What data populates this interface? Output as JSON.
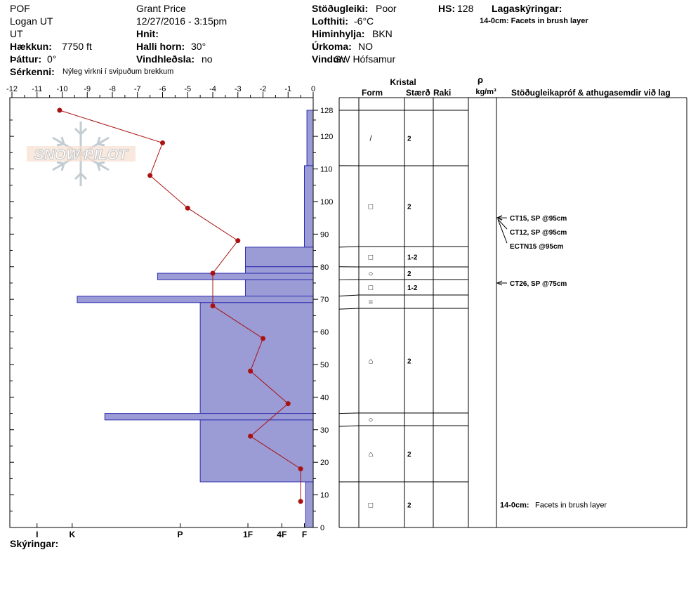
{
  "header": {
    "col1": [
      {
        "label": "",
        "value": "POF"
      },
      {
        "label": "",
        "value": "Logan UT"
      },
      {
        "label": "",
        "value": "UT"
      },
      {
        "label": "Hækkun:",
        "value": "7750 ft"
      },
      {
        "label": "Þáttur:",
        "value": "0°"
      }
    ],
    "col2": [
      {
        "label": "",
        "value": "Grant  Price"
      },
      {
        "label": "",
        "value": "12/27/2016 - 3:15pm"
      },
      {
        "label": "Hnit:",
        "value": ""
      },
      {
        "label": "Halli horn:",
        "value": "30°"
      },
      {
        "label": "Vindhleðsla:",
        "value": "no"
      }
    ],
    "col3": [
      {
        "label": "Stöðugleiki:",
        "value": "Poor"
      },
      {
        "label": "Lofthiti:",
        "value": "-6°C"
      },
      {
        "label": "Himinhylja:",
        "value": "BKN"
      },
      {
        "label": "Úrkoma:",
        "value": "NO"
      },
      {
        "label": "Vindur:",
        "value": "SW Hófsamur"
      }
    ],
    "hs_label": "HS:",
    "hs_value": "128",
    "lag_label": "Lagaskýringar:",
    "lag_note": "14-0cm:  Facets in brush layer",
    "serkenni_label": "Sérkenni:",
    "serkenni_value": "Nýleg virkni í svipuðum brekkum"
  },
  "logo": {
    "text": "SNOW PILOT"
  },
  "columns": {
    "kristal": "Kristal",
    "form": "Form",
    "staerd": "Stærð",
    "raki": "Raki",
    "rho": "ρ",
    "rho_unit": "kg/m³",
    "tests": "Stöðugleikapróf & athugasemdir við lag"
  },
  "footer": {
    "label": "Skýringar:"
  },
  "colors": {
    "hardness_fill": "#9b9bd6",
    "hardness_stroke": "#3030b0",
    "temp_line": "#aa1111"
  },
  "chart_data": {
    "type": "snow-profile",
    "temperature_axis": {
      "ticks": [
        -12,
        -11,
        -10,
        -9,
        -8,
        -7,
        -6,
        -5,
        -4,
        -3,
        -2,
        -1,
        0
      ],
      "tick_labels": [
        "-12",
        "-11",
        "-10",
        "-9",
        "-8",
        "-7",
        "-6",
        "-5",
        "-4",
        "-3",
        "-2",
        "-1",
        "0"
      ],
      "range": [
        -12,
        0
      ]
    },
    "height_axis": {
      "ticks": [
        0,
        10,
        20,
        30,
        40,
        50,
        60,
        70,
        80,
        90,
        100,
        110,
        120,
        128
      ],
      "tick_labels": [
        "0",
        "10",
        "20",
        "30",
        "40",
        "50",
        "60",
        "70",
        "80",
        "90",
        "100",
        "110",
        "120",
        "128"
      ],
      "range": [
        0,
        128
      ]
    },
    "hardness_labels": [
      {
        "label": "I",
        "x": -11
      },
      {
        "label": "K",
        "x": -9.6
      },
      {
        "label": "P",
        "x": -5.3
      },
      {
        "label": "1F",
        "x": -2.6
      },
      {
        "label": "4F",
        "x": -1.25
      },
      {
        "label": "F",
        "x": -0.35
      }
    ],
    "temperature_profile": [
      {
        "t": -10.1,
        "h": 128
      },
      {
        "t": -6.0,
        "h": 118
      },
      {
        "t": -6.5,
        "h": 108
      },
      {
        "t": -5.0,
        "h": 98
      },
      {
        "t": -3.0,
        "h": 88
      },
      {
        "t": -4.0,
        "h": 78
      },
      {
        "t": -4.0,
        "h": 68
      },
      {
        "t": -2.0,
        "h": 58
      },
      {
        "t": -2.5,
        "h": 48
      },
      {
        "t": -1.0,
        "h": 38
      },
      {
        "t": -2.5,
        "h": 28
      },
      {
        "t": -0.5,
        "h": 18
      },
      {
        "t": -0.5,
        "h": 8
      }
    ],
    "hardness_layers": [
      {
        "top": 128,
        "bottom": 111,
        "t": -0.25
      },
      {
        "top": 111,
        "bottom": 86,
        "t": -0.35
      },
      {
        "top": 86,
        "bottom": 80,
        "t": -2.7
      },
      {
        "top": 80,
        "bottom": 78,
        "t": -2.7
      },
      {
        "top": 78,
        "bottom": 76,
        "t": -6.2
      },
      {
        "top": 76,
        "bottom": 71,
        "t": -2.7
      },
      {
        "top": 71,
        "bottom": 69,
        "t": -9.4
      },
      {
        "top": 69,
        "bottom": 35,
        "t": -4.5
      },
      {
        "top": 35,
        "bottom": 33,
        "t": -8.3
      },
      {
        "top": 33,
        "bottom": 14,
        "t": -4.5
      },
      {
        "top": 14,
        "bottom": 0,
        "t": -0.3
      }
    ],
    "layers": [
      {
        "top": 128,
        "bottom": 111,
        "form": "/",
        "size": "2"
      },
      {
        "top": 111,
        "bottom": 86,
        "form": "□",
        "size": "2"
      },
      {
        "top": 86,
        "bottom": 80,
        "form": "□",
        "size": "1-2"
      },
      {
        "top": 80,
        "bottom": 76,
        "form": "○",
        "size": "2"
      },
      {
        "top": 76,
        "bottom": 71,
        "form": "□",
        "size": "1-2"
      },
      {
        "top": 71,
        "bottom": 67,
        "form": "=",
        "size": ""
      },
      {
        "top": 67,
        "bottom": 35,
        "form": "⌂",
        "size": "2"
      },
      {
        "top": 35,
        "bottom": 31,
        "form": "○",
        "size": ""
      },
      {
        "top": 31,
        "bottom": 14,
        "form": "⌂",
        "size": "2"
      },
      {
        "top": 14,
        "bottom": 0,
        "form": "□",
        "size": "2"
      }
    ],
    "tests": [
      {
        "label": "CT15, SP @95cm",
        "depth": 95,
        "dy": 0
      },
      {
        "label": "CT12, SP @95cm",
        "depth": 95,
        "dy": 20
      },
      {
        "label": "ECTN15 @95cm",
        "depth": 95,
        "dy": 40
      },
      {
        "label": "CT26, SP @75cm",
        "depth": 75,
        "dy": 0
      }
    ],
    "layer_comment": {
      "label": "14-0cm:",
      "text": "Facets in brush layer",
      "depth": 7
    }
  }
}
